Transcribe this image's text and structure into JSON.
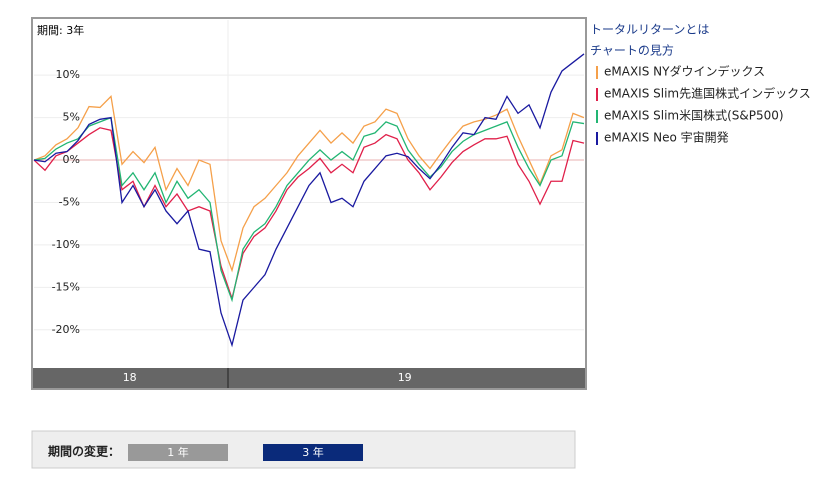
{
  "chart_data": {
    "type": "line",
    "title": "期間: 3年",
    "x": [
      0,
      1,
      2,
      3,
      4,
      5,
      6,
      7,
      8,
      9,
      10,
      11,
      12,
      13,
      14,
      15,
      16,
      17,
      18,
      19,
      20,
      21,
      22,
      23,
      24,
      25,
      26,
      27,
      28,
      29,
      30,
      31,
      32,
      33,
      34,
      35,
      36,
      37,
      38,
      39,
      40,
      41,
      42,
      43,
      44,
      45,
      46,
      47,
      48,
      49,
      50
    ],
    "xlim": [
      0,
      50
    ],
    "xticks": [
      {
        "value": 8.7,
        "label": "18"
      },
      {
        "value": 33.7,
        "label": "19"
      }
    ],
    "ylim": [
      -24.5,
      16.5
    ],
    "yticks": [
      {
        "value": 10,
        "label": "10%"
      },
      {
        "value": 5,
        "label": "5%"
      },
      {
        "value": 0,
        "label": "0%"
      },
      {
        "value": -5,
        "label": "-5%"
      },
      {
        "value": -10,
        "label": "-10%"
      },
      {
        "value": -15,
        "label": "-15%"
      },
      {
        "value": -20,
        "label": "-20%"
      }
    ],
    "grid": true,
    "series": [
      {
        "name": "eMAXIS NYダウインデックス",
        "color": "#f5a04a",
        "values": [
          0,
          0.5,
          1.8,
          2.5,
          3.8,
          6.3,
          6.2,
          7.5,
          -0.5,
          1.0,
          -0.3,
          1.5,
          -3.5,
          -1.0,
          -3.0,
          0.0,
          -0.5,
          -9.5,
          -13.0,
          -8.0,
          -5.5,
          -4.5,
          -3.0,
          -1.5,
          0.5,
          2.0,
          3.5,
          2.0,
          3.2,
          2.0,
          4.0,
          4.5,
          6.0,
          5.5,
          2.5,
          0.5,
          -1.0,
          0.8,
          2.5,
          4.0,
          4.5,
          4.8,
          5.3,
          6.0,
          2.8,
          0.0,
          -2.8,
          0.5,
          1.2,
          5.5,
          5.0
        ]
      },
      {
        "name": "eMAXIS Slim先進国株式インデックス",
        "color": "#e0204a",
        "values": [
          0,
          -1.2,
          0.5,
          1.0,
          2.0,
          3.0,
          3.8,
          3.5,
          -3.5,
          -2.5,
          -5.5,
          -3.0,
          -5.5,
          -4.0,
          -6.0,
          -5.5,
          -6.0,
          -12.5,
          -16.3,
          -11.0,
          -9.0,
          -8.0,
          -6.0,
          -3.5,
          -2.0,
          -1.0,
          0.2,
          -1.5,
          -0.5,
          -1.5,
          1.5,
          2.0,
          3.0,
          2.5,
          0.0,
          -1.5,
          -3.5,
          -2.0,
          -0.3,
          1.0,
          1.8,
          2.5,
          2.5,
          2.8,
          -0.5,
          -2.5,
          -5.2,
          -2.5,
          -2.5,
          2.3,
          2.0
        ]
      },
      {
        "name": "eMAXIS Slim米国株式(S&P500)",
        "color": "#22b573",
        "values": [
          0,
          0.2,
          1.3,
          2.0,
          2.5,
          4.0,
          4.5,
          5.0,
          -3.0,
          -1.5,
          -3.5,
          -1.5,
          -5.0,
          -2.5,
          -4.5,
          -3.5,
          -5.0,
          -13.0,
          -16.5,
          -10.5,
          -8.5,
          -7.5,
          -5.5,
          -3.0,
          -1.5,
          0.0,
          1.2,
          0.0,
          1.0,
          0.0,
          2.8,
          3.2,
          4.5,
          4.0,
          1.2,
          -0.5,
          -2.0,
          -0.8,
          1.0,
          2.2,
          3.0,
          3.5,
          4.0,
          4.5,
          1.5,
          -1.0,
          -3.0,
          0.0,
          0.5,
          4.5,
          4.3
        ]
      },
      {
        "name": "eMAXIS Neo 宇宙開発",
        "color": "#1a1aa0",
        "values": [
          0,
          -0.2,
          0.8,
          1.0,
          2.3,
          4.2,
          4.8,
          5.0,
          -5.0,
          -3.0,
          -5.5,
          -3.5,
          -6.0,
          -7.5,
          -6.0,
          -10.5,
          -10.8,
          -18.0,
          -21.8,
          -16.5,
          -15.0,
          -13.5,
          -10.5,
          -8.0,
          -5.5,
          -3.0,
          -1.5,
          -5.0,
          -4.5,
          -5.5,
          -2.5,
          -1.0,
          0.5,
          0.8,
          0.4,
          -1.0,
          -2.2,
          -0.5,
          1.5,
          3.2,
          3.0,
          5.0,
          4.8,
          7.5,
          5.5,
          6.5,
          3.8,
          8.0,
          10.5,
          11.5,
          12.5
        ]
      }
    ]
  },
  "links": [
    "トータルリターンとは",
    "チャートの見方"
  ],
  "period_selector": {
    "label": "期間の変更：",
    "buttons": [
      "1 年",
      "3 年"
    ]
  }
}
